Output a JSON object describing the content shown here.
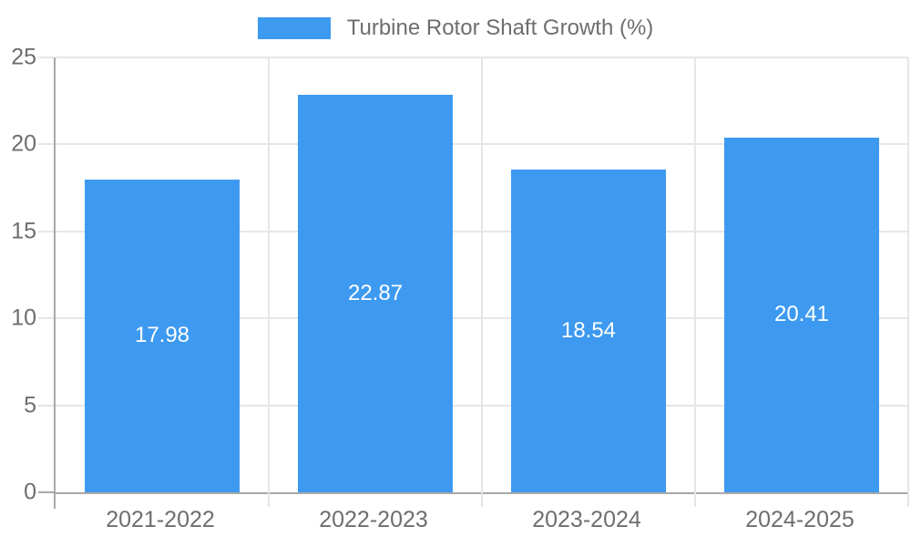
{
  "chart_data": {
    "type": "bar",
    "title": "",
    "categories": [
      "2021-2022",
      "2022-2023",
      "2023-2024",
      "2024-2025"
    ],
    "series": [
      {
        "name": "Turbine Rotor Shaft Growth (%)",
        "values": [
          17.98,
          22.87,
          18.54,
          20.41
        ]
      }
    ],
    "value_labels": [
      "17.98",
      "22.87",
      "18.54",
      "20.41"
    ],
    "ylabel": "",
    "xlabel": "",
    "ylim": [
      0,
      25
    ],
    "yticks": [
      0,
      5,
      10,
      15,
      20,
      25
    ],
    "grid": true,
    "legend_position": "top-center"
  },
  "colors": {
    "bar": "#3d9af0",
    "grid": "#e6e6e6",
    "axis": "#a9a9a9",
    "text": "#6e6e6e",
    "value_label": "#ffffff",
    "background": "#ffffff"
  }
}
